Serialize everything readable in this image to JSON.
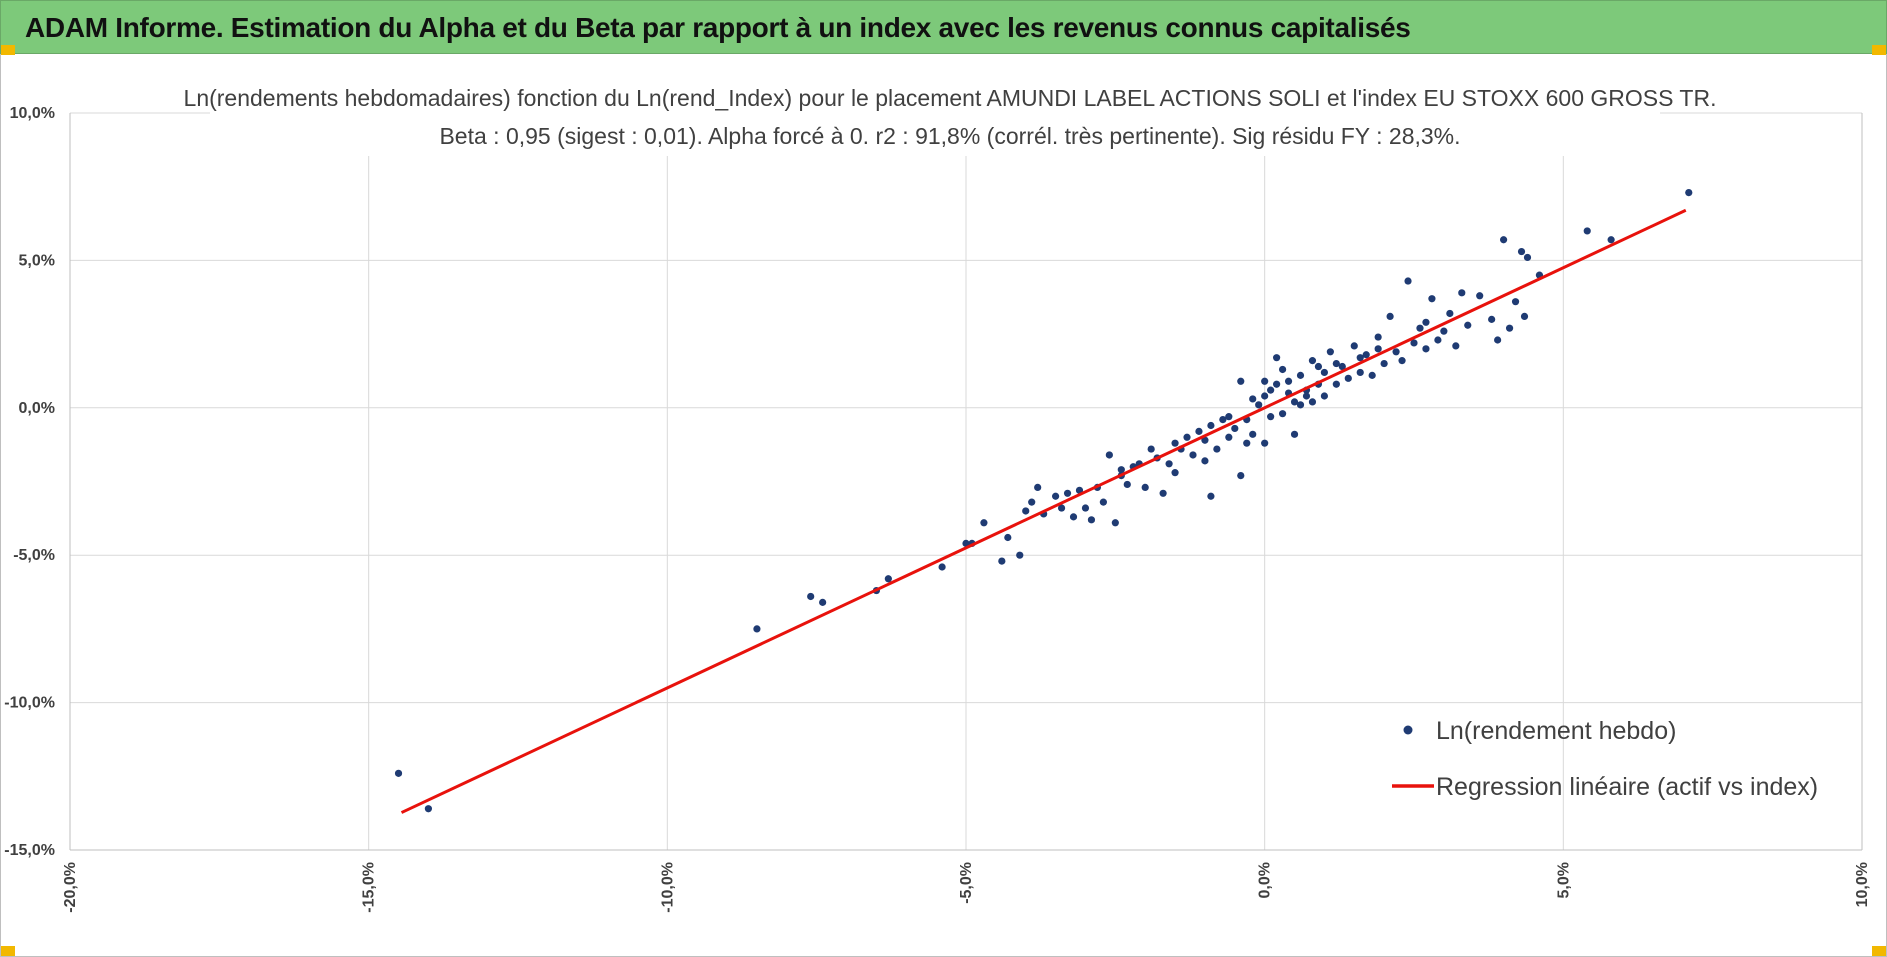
{
  "banner": {
    "title": "ADAM Informe. Estimation du Alpha et du Beta par rapport à un index avec les revenus connus capitalisés",
    "background_color": "#7dc97a",
    "corner_color": "#f2b800"
  },
  "chart_data": {
    "type": "scatter",
    "title": "Ln(rendements hebdomadaires) fonction du Ln(rend_Index) pour le placement AMUNDI LABEL ACTIONS SOLI et l'index EU STOXX 600 GROSS TR.",
    "subtitle": "Beta : 0,95 (sigest : 0,01). Alpha forcé à 0. r2 : 91,8% (corrél. très pertinente). Sig résidu FY : 28,3%.",
    "xlabel": "",
    "ylabel": "",
    "xlim": [
      -20,
      10
    ],
    "ylim": [
      -15,
      10
    ],
    "x_ticks": [
      -20,
      -15,
      -10,
      -5,
      0,
      5,
      10
    ],
    "x_tick_labels": [
      "-20,0%",
      "-15,0%",
      "-10,0%",
      "-5,0%",
      "0,0%",
      "5,0%",
      "10,0%"
    ],
    "y_ticks": [
      -15,
      -10,
      -5,
      0,
      5,
      10
    ],
    "y_tick_labels": [
      "-15,0%",
      "-10,0%",
      "-5,0%",
      "0,0%",
      "5,0%",
      "10,0%"
    ],
    "grid": true,
    "legend_position": "bottom-right",
    "series": [
      {
        "name": "Ln(rendement hebdo)",
        "kind": "scatter",
        "color": "#1f3b73",
        "points": [
          [
            -14.5,
            -12.4
          ],
          [
            -14.0,
            -13.6
          ],
          [
            -8.5,
            -7.5
          ],
          [
            -7.6,
            -6.4
          ],
          [
            -7.4,
            -6.6
          ],
          [
            -6.5,
            -6.2
          ],
          [
            -6.3,
            -5.8
          ],
          [
            -5.4,
            -5.4
          ],
          [
            -5.0,
            -4.6
          ],
          [
            -4.9,
            -4.6
          ],
          [
            -4.7,
            -3.9
          ],
          [
            -4.4,
            -5.2
          ],
          [
            -4.3,
            -4.4
          ],
          [
            -4.1,
            -5.0
          ],
          [
            -4.0,
            -3.5
          ],
          [
            -3.9,
            -3.2
          ],
          [
            -3.8,
            -2.7
          ],
          [
            -3.7,
            -3.6
          ],
          [
            -3.5,
            -3.0
          ],
          [
            -3.4,
            -3.4
          ],
          [
            -3.3,
            -2.9
          ],
          [
            -3.2,
            -3.7
          ],
          [
            -3.1,
            -2.8
          ],
          [
            -3.0,
            -3.4
          ],
          [
            -2.9,
            -3.8
          ],
          [
            -2.8,
            -2.7
          ],
          [
            -2.7,
            -3.2
          ],
          [
            -2.6,
            -1.6
          ],
          [
            -2.5,
            -3.9
          ],
          [
            -2.4,
            -2.3
          ],
          [
            -2.3,
            -2.6
          ],
          [
            -2.2,
            -2.0
          ],
          [
            -2.1,
            -1.9
          ],
          [
            -2.0,
            -2.7
          ],
          [
            -1.9,
            -1.4
          ],
          [
            -1.8,
            -1.7
          ],
          [
            -1.7,
            -2.9
          ],
          [
            -1.6,
            -1.9
          ],
          [
            -1.5,
            -2.2
          ],
          [
            -1.4,
            -1.4
          ],
          [
            -1.3,
            -1.0
          ],
          [
            -1.2,
            -1.6
          ],
          [
            -1.1,
            -0.8
          ],
          [
            -1.0,
            -1.8
          ],
          [
            -1.0,
            -1.1
          ],
          [
            -0.9,
            -3.0
          ],
          [
            -0.9,
            -0.6
          ],
          [
            -0.8,
            -1.4
          ],
          [
            -0.7,
            -0.4
          ],
          [
            -0.6,
            -1.0
          ],
          [
            -0.5,
            -0.7
          ],
          [
            -0.4,
            0.9
          ],
          [
            -0.4,
            -2.3
          ],
          [
            -0.3,
            -1.2
          ],
          [
            -0.2,
            -0.9
          ],
          [
            -0.1,
            0.1
          ],
          [
            0.0,
            0.4
          ],
          [
            0.0,
            -1.2
          ],
          [
            0.1,
            -0.3
          ],
          [
            0.1,
            0.6
          ],
          [
            0.2,
            0.8
          ],
          [
            0.2,
            1.7
          ],
          [
            0.3,
            -0.2
          ],
          [
            0.3,
            1.3
          ],
          [
            0.4,
            0.5
          ],
          [
            0.5,
            0.2
          ],
          [
            0.5,
            -0.9
          ],
          [
            0.6,
            1.1
          ],
          [
            0.6,
            0.1
          ],
          [
            0.7,
            0.6
          ],
          [
            0.8,
            1.6
          ],
          [
            0.8,
            0.2
          ],
          [
            0.9,
            0.8
          ],
          [
            1.0,
            1.2
          ],
          [
            1.0,
            0.4
          ],
          [
            1.1,
            1.9
          ],
          [
            1.2,
            0.8
          ],
          [
            1.3,
            1.4
          ],
          [
            1.4,
            1.0
          ],
          [
            1.5,
            2.1
          ],
          [
            1.6,
            1.2
          ],
          [
            1.7,
            1.8
          ],
          [
            1.8,
            1.1
          ],
          [
            1.9,
            2.4
          ],
          [
            2.0,
            1.5
          ],
          [
            2.1,
            3.1
          ],
          [
            2.2,
            1.9
          ],
          [
            2.3,
            1.6
          ],
          [
            2.4,
            4.3
          ],
          [
            2.5,
            2.2
          ],
          [
            2.6,
            2.7
          ],
          [
            2.7,
            2.0
          ],
          [
            2.8,
            3.7
          ],
          [
            2.9,
            2.3
          ],
          [
            3.0,
            2.6
          ],
          [
            3.1,
            3.2
          ],
          [
            3.2,
            2.1
          ],
          [
            3.3,
            3.9
          ],
          [
            3.4,
            2.8
          ],
          [
            3.6,
            3.8
          ],
          [
            3.8,
            3.0
          ],
          [
            3.9,
            2.3
          ],
          [
            4.0,
            5.7
          ],
          [
            4.1,
            2.7
          ],
          [
            4.2,
            3.6
          ],
          [
            4.3,
            5.3
          ],
          [
            4.35,
            3.1
          ],
          [
            4.4,
            5.1
          ],
          [
            4.6,
            4.5
          ],
          [
            5.4,
            6.0
          ],
          [
            5.8,
            5.7
          ],
          [
            7.1,
            7.3
          ],
          [
            -0.2,
            0.3
          ],
          [
            0.4,
            0.9
          ],
          [
            0.7,
            0.4
          ],
          [
            1.2,
            1.5
          ],
          [
            0.9,
            1.4
          ],
          [
            -0.6,
            -0.3
          ],
          [
            0.0,
            0.9
          ],
          [
            1.6,
            1.7
          ],
          [
            -1.5,
            -1.2
          ],
          [
            2.7,
            2.9
          ],
          [
            -2.4,
            -2.1
          ],
          [
            1.9,
            2.0
          ],
          [
            -0.3,
            -0.4
          ]
        ]
      },
      {
        "name": "Regression linéaire (actif vs index)",
        "kind": "line",
        "color": "#e8120c",
        "points": [
          [
            -14.45,
            -13.73
          ],
          [
            7.05,
            6.7
          ]
        ]
      }
    ]
  }
}
